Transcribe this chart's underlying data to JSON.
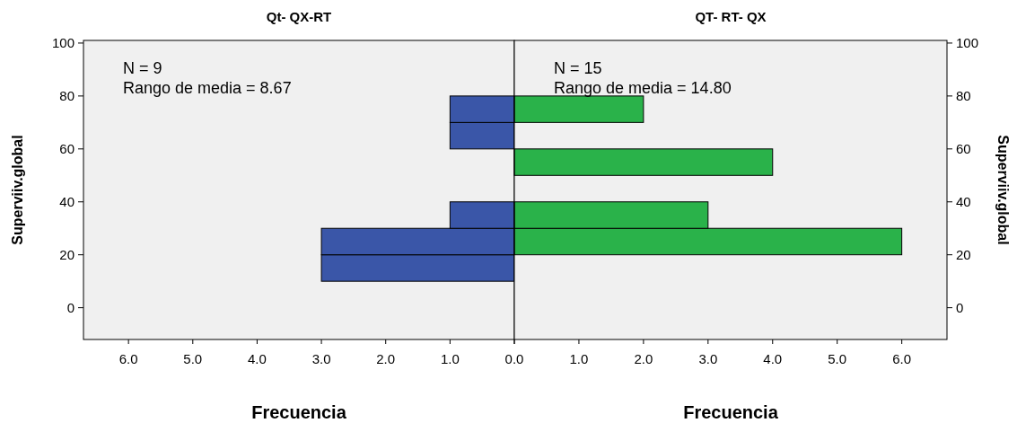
{
  "chart_data": [
    {
      "type": "histogram",
      "orientation": "horizontal",
      "title": "Qt- QX-RT",
      "xlabel": "Frecuencia",
      "ylabel": "Superviiv.global",
      "bins": [
        10,
        20,
        30,
        40,
        50,
        60,
        70,
        80
      ],
      "values": [
        3,
        3,
        1,
        0,
        0,
        1,
        1
      ],
      "color": "#3a56a8",
      "xlim": [
        6.7,
        0
      ],
      "xticks": [
        {
          "value": 6,
          "label": "6.0"
        },
        {
          "value": 5,
          "label": "5.0"
        },
        {
          "value": 4,
          "label": "4.0"
        },
        {
          "value": 3,
          "label": "3.0"
        },
        {
          "value": 2,
          "label": "2.0"
        },
        {
          "value": 1,
          "label": "1.0"
        },
        {
          "value": 0,
          "label": null
        }
      ],
      "ylim": [
        -12,
        101
      ],
      "yticks": [
        0,
        20,
        40,
        60,
        80,
        100
      ],
      "grid": false,
      "annotations": [
        "N = 9",
        "Rango de media = 8.67"
      ]
    },
    {
      "type": "histogram",
      "orientation": "horizontal",
      "title": "QT- RT- QX",
      "xlabel": "Frecuencia",
      "ylabel": "Superviiv.global",
      "bins": [
        20,
        30,
        40,
        50,
        60,
        70,
        80
      ],
      "values": [
        6,
        3,
        0,
        4,
        0,
        2
      ],
      "color": "#2ab24a",
      "xlim": [
        0,
        6.7
      ],
      "xticks": [
        {
          "value": 0,
          "label": "0.0"
        },
        {
          "value": 1,
          "label": "1.0"
        },
        {
          "value": 2,
          "label": "2.0"
        },
        {
          "value": 3,
          "label": "3.0"
        },
        {
          "value": 4,
          "label": "4.0"
        },
        {
          "value": 5,
          "label": "5.0"
        },
        {
          "value": 6,
          "label": "6.0"
        }
      ],
      "ylim": [
        -12,
        101
      ],
      "yticks": [
        0,
        20,
        40,
        60,
        80,
        100
      ],
      "grid": false,
      "annotations": [
        "N = 15",
        "Rango de media = 14.80"
      ]
    }
  ]
}
